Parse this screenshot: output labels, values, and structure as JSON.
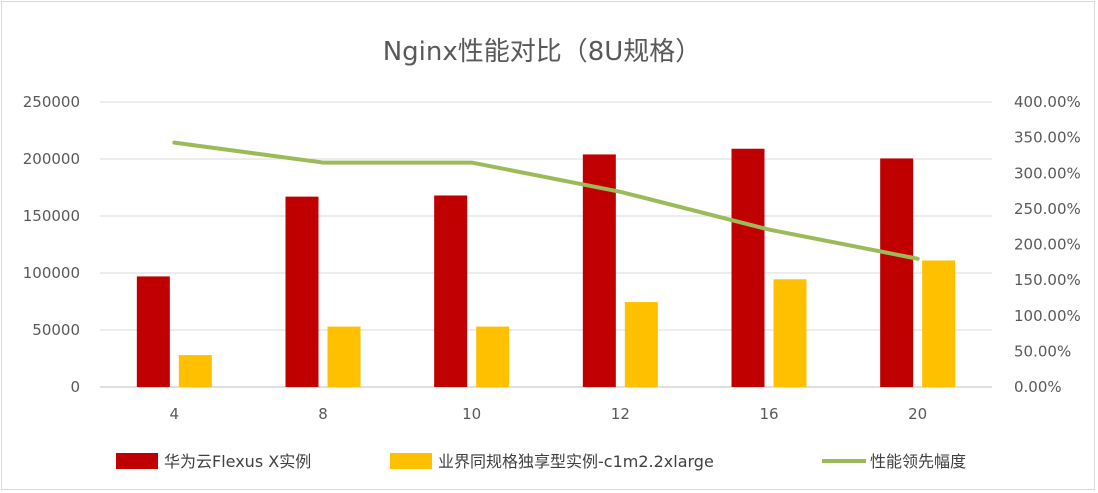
{
  "chart_data": {
    "type": "bar",
    "title": "Nginx性能对比（8U规格）",
    "categories": [
      "4",
      "8",
      "10",
      "12",
      "16",
      "20"
    ],
    "series": [
      {
        "name": "华为云Flexus X实例",
        "type": "bar",
        "axis": "left",
        "color": "#c00000",
        "values": [
          97000,
          167000,
          168000,
          204000,
          209000,
          200500
        ]
      },
      {
        "name": "业界同规格独享型实例-c1m2.2xlarge",
        "type": "bar",
        "axis": "left",
        "color": "#ffc000",
        "values": [
          28000,
          53000,
          53000,
          74500,
          94500,
          111000
        ]
      },
      {
        "name": "性能领先幅度",
        "type": "line",
        "axis": "right",
        "color": "#9bbb59",
        "values": [
          3.43,
          3.15,
          3.15,
          2.74,
          2.21,
          1.8
        ]
      }
    ],
    "y_left": {
      "min": 0,
      "max": 250000,
      "ticks": [
        "0",
        "50000",
        "100000",
        "150000",
        "200000",
        "250000"
      ]
    },
    "y_right": {
      "min": 0,
      "max": 4.0,
      "ticks": [
        "0.00%",
        "50.00%",
        "100.00%",
        "150.00%",
        "200.00%",
        "250.00%",
        "300.00%",
        "350.00%",
        "400.00%"
      ]
    },
    "grid": true,
    "legend_position": "bottom"
  }
}
